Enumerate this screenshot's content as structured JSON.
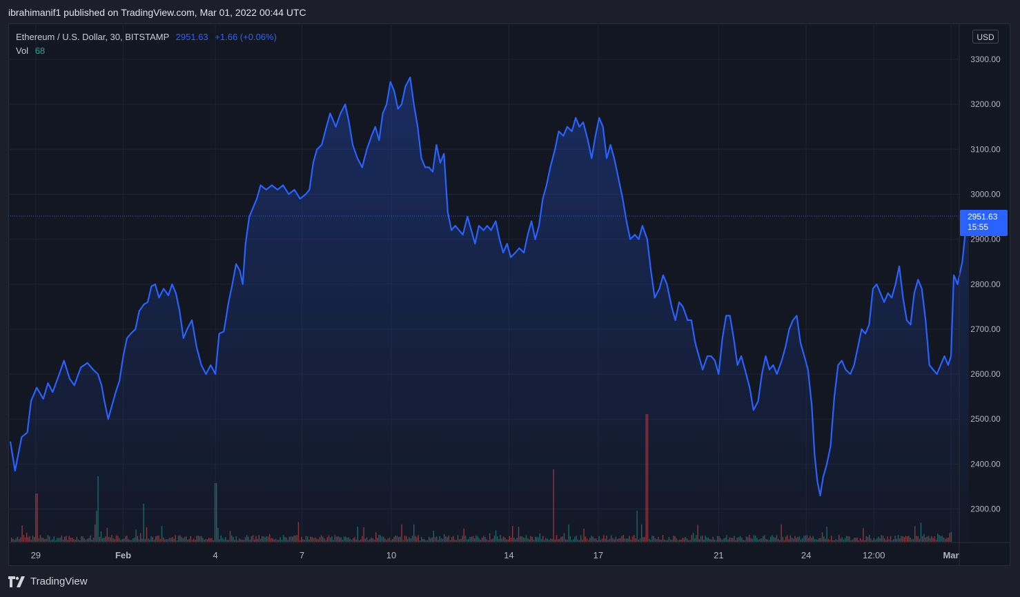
{
  "header": {
    "published": "ibrahimanif1 published on TradingView.com, Mar 01, 2022 00:44 UTC"
  },
  "legend": {
    "symbol": "Ethereum / U.S. Dollar, 30, BITSTAMP",
    "last": "2951.63",
    "change": "+1.66 (+0.06%)"
  },
  "volume": {
    "label": "Vol",
    "value": "68"
  },
  "currency": "USD",
  "price_tag": {
    "price": "2951.63",
    "countdown": "15:55"
  },
  "brand": {
    "name": "TradingView",
    "icon": "tradingview-logo-icon"
  },
  "colors": {
    "line": "#2962ff",
    "up": "#26a69a",
    "down": "#ef5350",
    "background": "#131722"
  },
  "chart_data": {
    "type": "area",
    "y_ticks": [
      3300,
      3200,
      3100,
      3000,
      2900,
      2800,
      2700,
      2600,
      2500,
      2400,
      2300
    ],
    "ylim": [
      2225,
      3360
    ],
    "x_ticks": [
      "29",
      "Feb",
      "4",
      "7",
      "10",
      "14",
      "17",
      "21",
      "24",
      "12:00",
      "Mar"
    ],
    "x_tick_t": [
      0.027,
      0.12,
      0.218,
      0.31,
      0.405,
      0.53,
      0.625,
      0.753,
      0.846,
      0.918,
      1.0
    ],
    "points": [
      [
        0,
        2450
      ],
      [
        0.005,
        2385
      ],
      [
        0.012,
        2460
      ],
      [
        0.018,
        2470
      ],
      [
        0.022,
        2540
      ],
      [
        0.028,
        2570
      ],
      [
        0.035,
        2545
      ],
      [
        0.04,
        2580
      ],
      [
        0.045,
        2560
      ],
      [
        0.052,
        2600
      ],
      [
        0.057,
        2630
      ],
      [
        0.063,
        2590
      ],
      [
        0.068,
        2575
      ],
      [
        0.075,
        2615
      ],
      [
        0.082,
        2625
      ],
      [
        0.088,
        2610
      ],
      [
        0.093,
        2600
      ],
      [
        0.097,
        2575
      ],
      [
        0.1,
        2540
      ],
      [
        0.104,
        2500
      ],
      [
        0.108,
        2530
      ],
      [
        0.112,
        2560
      ],
      [
        0.116,
        2585
      ],
      [
        0.12,
        2640
      ],
      [
        0.124,
        2680
      ],
      [
        0.128,
        2690
      ],
      [
        0.133,
        2700
      ],
      [
        0.137,
        2740
      ],
      [
        0.142,
        2755
      ],
      [
        0.146,
        2760
      ],
      [
        0.15,
        2795
      ],
      [
        0.154,
        2800
      ],
      [
        0.158,
        2770
      ],
      [
        0.163,
        2790
      ],
      [
        0.168,
        2775
      ],
      [
        0.172,
        2800
      ],
      [
        0.176,
        2780
      ],
      [
        0.18,
        2740
      ],
      [
        0.184,
        2680
      ],
      [
        0.188,
        2700
      ],
      [
        0.193,
        2720
      ],
      [
        0.198,
        2660
      ],
      [
        0.203,
        2620
      ],
      [
        0.208,
        2600
      ],
      [
        0.213,
        2620
      ],
      [
        0.218,
        2600
      ],
      [
        0.222,
        2690
      ],
      [
        0.227,
        2695
      ],
      [
        0.232,
        2760
      ],
      [
        0.236,
        2800
      ],
      [
        0.24,
        2845
      ],
      [
        0.244,
        2830
      ],
      [
        0.247,
        2800
      ],
      [
        0.25,
        2890
      ],
      [
        0.254,
        2950
      ],
      [
        0.258,
        2970
      ],
      [
        0.262,
        2990
      ],
      [
        0.266,
        3020
      ],
      [
        0.272,
        3010
      ],
      [
        0.278,
        3020
      ],
      [
        0.284,
        3010
      ],
      [
        0.29,
        3020
      ],
      [
        0.296,
        3000
      ],
      [
        0.302,
        3010
      ],
      [
        0.308,
        2990
      ],
      [
        0.314,
        3000
      ],
      [
        0.318,
        3010
      ],
      [
        0.322,
        3070
      ],
      [
        0.326,
        3100
      ],
      [
        0.331,
        3110
      ],
      [
        0.336,
        3150
      ],
      [
        0.34,
        3180
      ],
      [
        0.346,
        3150
      ],
      [
        0.351,
        3180
      ],
      [
        0.356,
        3200
      ],
      [
        0.36,
        3160
      ],
      [
        0.364,
        3110
      ],
      [
        0.369,
        3080
      ],
      [
        0.374,
        3060
      ],
      [
        0.379,
        3100
      ],
      [
        0.384,
        3130
      ],
      [
        0.388,
        3150
      ],
      [
        0.392,
        3120
      ],
      [
        0.396,
        3180
      ],
      [
        0.4,
        3200
      ],
      [
        0.404,
        3250
      ],
      [
        0.408,
        3230
      ],
      [
        0.412,
        3190
      ],
      [
        0.416,
        3200
      ],
      [
        0.42,
        3240
      ],
      [
        0.425,
        3260
      ],
      [
        0.429,
        3200
      ],
      [
        0.433,
        3150
      ],
      [
        0.437,
        3080
      ],
      [
        0.441,
        3060
      ],
      [
        0.445,
        3060
      ],
      [
        0.449,
        3050
      ],
      [
        0.453,
        3110
      ],
      [
        0.457,
        3070
      ],
      [
        0.461,
        3090
      ],
      [
        0.465,
        2960
      ],
      [
        0.469,
        2920
      ],
      [
        0.473,
        2930
      ],
      [
        0.477,
        2920
      ],
      [
        0.481,
        2910
      ],
      [
        0.486,
        2950
      ],
      [
        0.49,
        2920
      ],
      [
        0.494,
        2890
      ],
      [
        0.498,
        2930
      ],
      [
        0.503,
        2920
      ],
      [
        0.507,
        2930
      ],
      [
        0.511,
        2920
      ],
      [
        0.516,
        2940
      ],
      [
        0.52,
        2900
      ],
      [
        0.524,
        2870
      ],
      [
        0.528,
        2890
      ],
      [
        0.532,
        2860
      ],
      [
        0.537,
        2870
      ],
      [
        0.541,
        2880
      ],
      [
        0.546,
        2870
      ],
      [
        0.55,
        2910
      ],
      [
        0.554,
        2940
      ],
      [
        0.558,
        2900
      ],
      [
        0.562,
        2930
      ],
      [
        0.566,
        2990
      ],
      [
        0.57,
        3020
      ],
      [
        0.574,
        3060
      ],
      [
        0.579,
        3100
      ],
      [
        0.583,
        3140
      ],
      [
        0.588,
        3130
      ],
      [
        0.592,
        3150
      ],
      [
        0.597,
        3140
      ],
      [
        0.601,
        3170
      ],
      [
        0.605,
        3150
      ],
      [
        0.609,
        3160
      ],
      [
        0.614,
        3120
      ],
      [
        0.618,
        3080
      ],
      [
        0.622,
        3130
      ],
      [
        0.626,
        3170
      ],
      [
        0.63,
        3150
      ],
      [
        0.634,
        3080
      ],
      [
        0.638,
        3110
      ],
      [
        0.642,
        3080
      ],
      [
        0.646,
        3040
      ],
      [
        0.651,
        2990
      ],
      [
        0.655,
        2940
      ],
      [
        0.659,
        2900
      ],
      [
        0.664,
        2910
      ],
      [
        0.668,
        2900
      ],
      [
        0.672,
        2930
      ],
      [
        0.677,
        2900
      ],
      [
        0.681,
        2830
      ],
      [
        0.685,
        2770
      ],
      [
        0.69,
        2790
      ],
      [
        0.694,
        2820
      ],
      [
        0.698,
        2800
      ],
      [
        0.703,
        2750
      ],
      [
        0.707,
        2720
      ],
      [
        0.711,
        2760
      ],
      [
        0.715,
        2750
      ],
      [
        0.72,
        2720
      ],
      [
        0.724,
        2720
      ],
      [
        0.728,
        2670
      ],
      [
        0.732,
        2640
      ],
      [
        0.736,
        2610
      ],
      [
        0.741,
        2640
      ],
      [
        0.745,
        2640
      ],
      [
        0.749,
        2630
      ],
      [
        0.753,
        2600
      ],
      [
        0.757,
        2680
      ],
      [
        0.761,
        2730
      ],
      [
        0.765,
        2730
      ],
      [
        0.769,
        2680
      ],
      [
        0.773,
        2620
      ],
      [
        0.777,
        2640
      ],
      [
        0.781,
        2610
      ],
      [
        0.786,
        2570
      ],
      [
        0.79,
        2520
      ],
      [
        0.795,
        2540
      ],
      [
        0.799,
        2600
      ],
      [
        0.803,
        2640
      ],
      [
        0.807,
        2610
      ],
      [
        0.811,
        2620
      ],
      [
        0.815,
        2600
      ],
      [
        0.82,
        2630
      ],
      [
        0.824,
        2660
      ],
      [
        0.828,
        2700
      ],
      [
        0.832,
        2720
      ],
      [
        0.836,
        2730
      ],
      [
        0.84,
        2670
      ],
      [
        0.844,
        2640
      ],
      [
        0.848,
        2610
      ],
      [
        0.852,
        2530
      ],
      [
        0.855,
        2420
      ],
      [
        0.858,
        2360
      ],
      [
        0.861,
        2330
      ],
      [
        0.864,
        2370
      ],
      [
        0.868,
        2400
      ],
      [
        0.872,
        2440
      ],
      [
        0.876,
        2550
      ],
      [
        0.88,
        2620
      ],
      [
        0.884,
        2630
      ],
      [
        0.888,
        2610
      ],
      [
        0.893,
        2600
      ],
      [
        0.897,
        2620
      ],
      [
        0.901,
        2660
      ],
      [
        0.905,
        2700
      ],
      [
        0.909,
        2690
      ],
      [
        0.913,
        2710
      ],
      [
        0.917,
        2790
      ],
      [
        0.921,
        2800
      ],
      [
        0.925,
        2780
      ],
      [
        0.929,
        2760
      ],
      [
        0.933,
        2780
      ],
      [
        0.937,
        2770
      ],
      [
        0.941,
        2800
      ],
      [
        0.945,
        2840
      ],
      [
        0.949,
        2770
      ],
      [
        0.953,
        2720
      ],
      [
        0.957,
        2710
      ],
      [
        0.961,
        2780
      ],
      [
        0.965,
        2810
      ],
      [
        0.969,
        2790
      ],
      [
        0.973,
        2720
      ],
      [
        0.977,
        2620
      ],
      [
        0.981,
        2610
      ],
      [
        0.985,
        2600
      ],
      [
        0.989,
        2620
      ],
      [
        0.993,
        2640
      ],
      [
        0.997,
        2620
      ],
      [
        1.0,
        2640
      ],
      [
        1.003,
        2820
      ],
      [
        1.007,
        2800
      ],
      [
        1.012,
        2850
      ],
      [
        1.016,
        2930
      ],
      [
        1.019,
        2951.63
      ]
    ]
  }
}
